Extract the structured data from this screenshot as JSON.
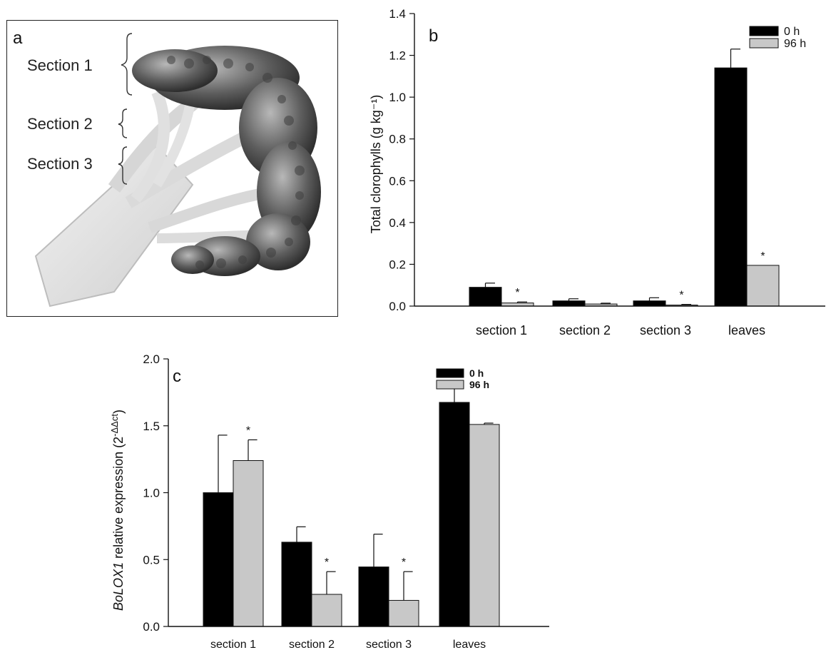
{
  "panel_a": {
    "letter": "a",
    "section_labels": [
      "Section 1",
      "Section 2",
      "Section 3"
    ]
  },
  "chart_data": [
    {
      "panel": "b",
      "type": "bar",
      "categories": [
        "section 1",
        "section 2",
        "section 3",
        "leaves"
      ],
      "series": [
        {
          "name": "0 h",
          "color": "#000000",
          "values": [
            0.09,
            0.025,
            0.025,
            1.14
          ],
          "errors": [
            0.02,
            0.01,
            0.015,
            0.09
          ]
        },
        {
          "name": "96 h",
          "color": "#c8c8c8",
          "values": [
            0.015,
            0.01,
            0.005,
            0.195
          ],
          "errors": [
            0.005,
            0.004,
            0.003,
            0.0
          ]
        }
      ],
      "significance": [
        "*",
        "",
        "*",
        "*"
      ],
      "ylabel": "Total clorophylls (g kg⁻¹)",
      "ylim": [
        0,
        1.4
      ],
      "yticks": [
        "0.0",
        "0.2",
        "0.4",
        "0.6",
        "0.8",
        "1.0",
        "1.2",
        "1.4"
      ],
      "legend_position": "top-right"
    },
    {
      "panel": "c",
      "type": "bar",
      "categories": [
        "section 1",
        "section 2",
        "section 3",
        "leaves"
      ],
      "series": [
        {
          "name": "0 h",
          "color": "#000000",
          "values": [
            1.0,
            0.63,
            0.445,
            1.675
          ],
          "errors": [
            0.43,
            0.115,
            0.245,
            0.12
          ]
        },
        {
          "name": "96 h",
          "color": "#c8c8c8",
          "values": [
            1.24,
            0.24,
            0.195,
            1.51
          ],
          "errors": [
            0.155,
            0.17,
            0.215,
            0.01
          ]
        }
      ],
      "significance": [
        "*",
        "*",
        "*",
        ""
      ],
      "ylabel_italic": "BoLOX1",
      "ylabel_rest": " relative expression (2",
      "ylabel_sup": "-ΔΔct",
      "ylabel_close": ")",
      "ylim": [
        0,
        2.0
      ],
      "yticks": [
        "0.0",
        "0.5",
        "1.0",
        "1.5",
        "2.0"
      ],
      "legend_position": "top-right"
    }
  ]
}
